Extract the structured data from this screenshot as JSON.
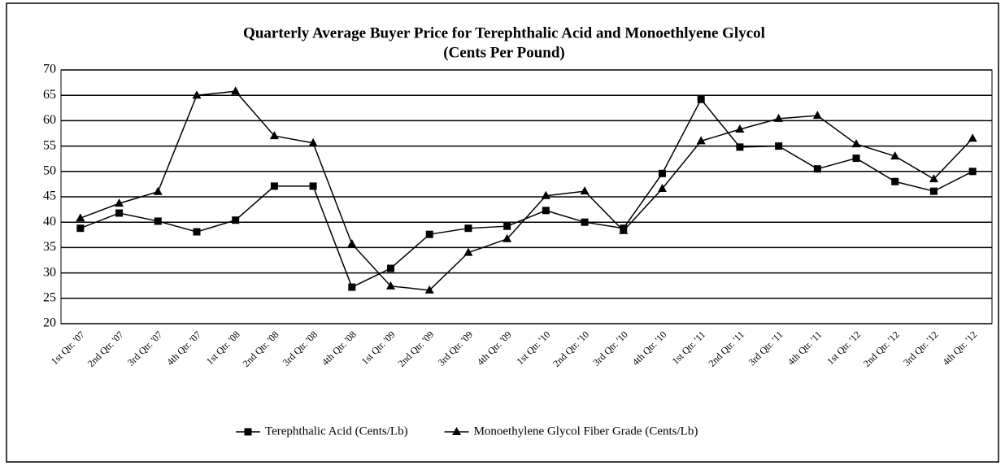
{
  "chart_data": {
    "type": "line",
    "title": "Quarterly Average Buyer Price for Terephthalic Acid and Monoethlyene Glycol",
    "subtitle": "(Cents Per Pound)",
    "categories": [
      "1st Qtr. '07",
      "2nd Qtr. '07",
      "3rd Qtr. '07",
      "4th Qtr. '07",
      "1st Qtr. '08",
      "2nd Qtr. '08",
      "3rd Qtr. '08",
      "4th Qtr. '08",
      "1st Qtr. '09",
      "2nd Qtr. '09",
      "3rd Qtr. '09",
      "4th Qtr. '09",
      "1st Qtr. '10",
      "2nd Qtr. '10",
      "3rd Qtr. '10",
      "4th Qtr. '10",
      "1st Qtr. '11",
      "2nd Qtr. '11",
      "3rd Qtr. '11",
      "4th Qtr. '11",
      "1st Qtr. '12",
      "2nd Qtr. '12",
      "3rd Qtr. '12",
      "4th Qtr. '12"
    ],
    "series": [
      {
        "name": "Terephthalic Acid (Cents/Lb)",
        "color": "#000000",
        "marker": "square",
        "values": [
          38.8,
          41.8,
          40.2,
          38.1,
          40.4,
          47.1,
          47.1,
          27.2,
          30.9,
          37.6,
          38.8,
          39.2,
          42.3,
          40.0,
          38.8,
          49.6,
          64.2,
          54.8,
          55.0,
          50.5,
          52.6,
          48.0,
          46.1,
          50.0
        ]
      },
      {
        "name": "Monoethylene Glycol Fiber Grade (Cents/Lb)",
        "color": "#000000",
        "marker": "triangle",
        "values": [
          40.8,
          43.7,
          46.0,
          65.0,
          65.8,
          57.0,
          55.6,
          35.7,
          27.4,
          26.6,
          34.0,
          36.7,
          45.2,
          46.1,
          38.3,
          46.6,
          56.0,
          58.3,
          60.4,
          61.0,
          55.4,
          53.0,
          48.5,
          56.5
        ]
      }
    ],
    "ylim": [
      20,
      70
    ],
    "yticks": [
      20,
      25,
      30,
      35,
      40,
      45,
      50,
      55,
      60,
      65,
      70
    ],
    "grid": true,
    "legend": "bottom"
  }
}
